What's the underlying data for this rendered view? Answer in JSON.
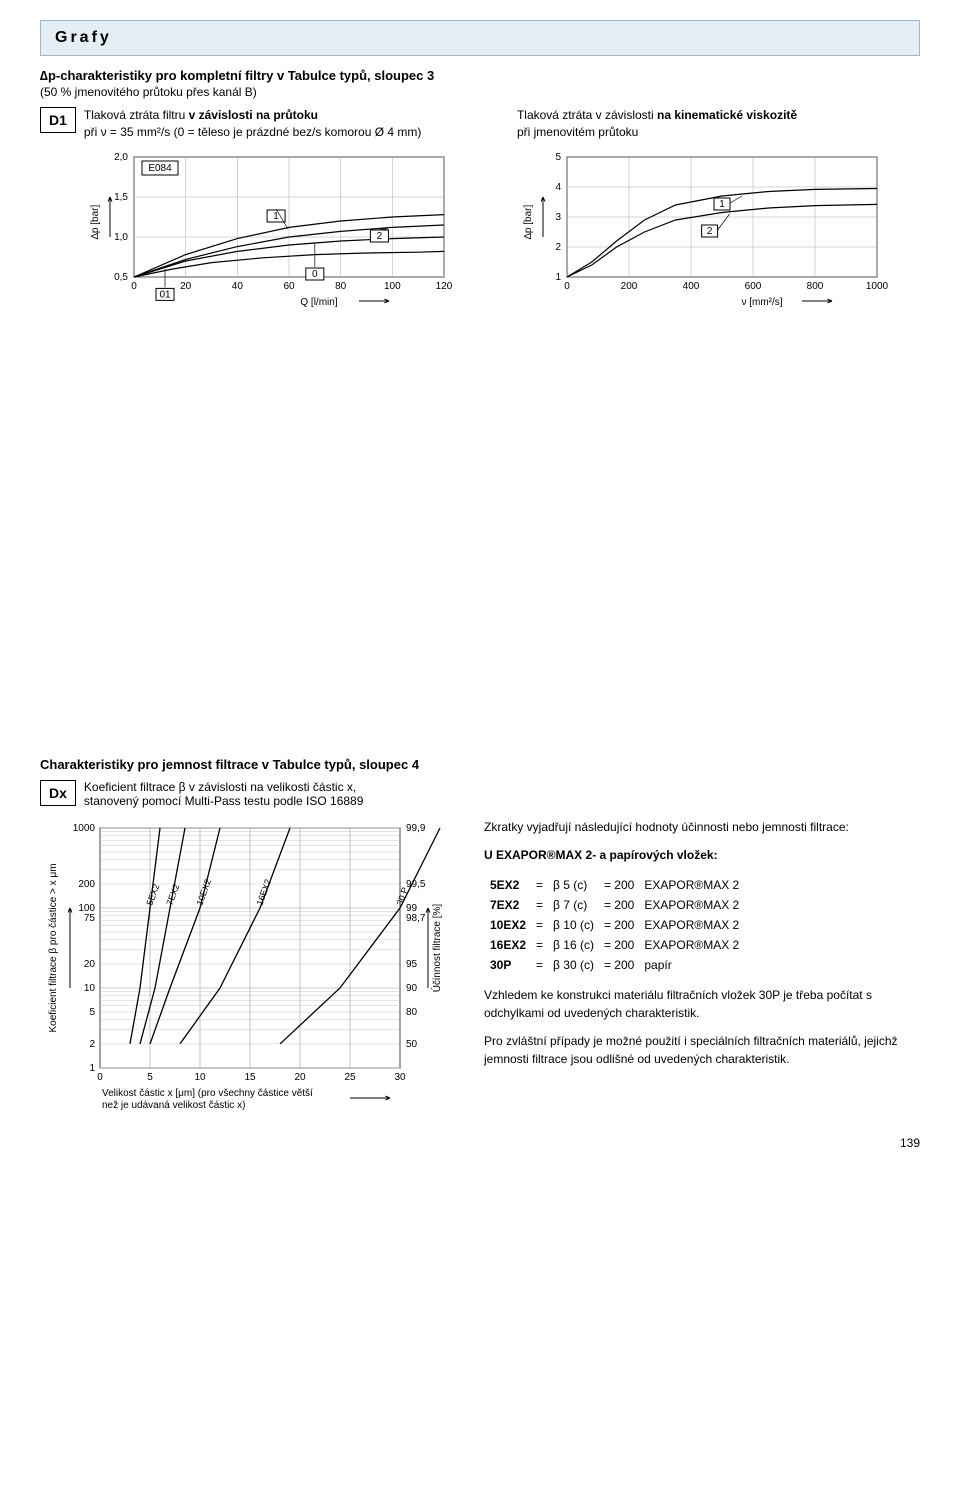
{
  "header": {
    "title": "Grafy"
  },
  "section1": {
    "title": "∆p-charakteristiky pro kompletní filtry v Tabulce typů, sloupec 3",
    "sub": "(50 % jmenovitého průtoku přes kanál B)",
    "box_label": "D1",
    "left": {
      "title_a": "Tlaková ztráta filtru ",
      "title_b": "v závislosti na průtoku",
      "sub": "při ν = 35 mm²/s (0 = těleso je prázdné bez/s komorou Ø 4 mm)"
    },
    "right": {
      "title_a": "Tlaková ztráta v závislosti ",
      "title_b": "na kinematické viskozitě",
      "sub": "při jmenovitém průtoku"
    }
  },
  "chart_left": {
    "ylabel": "∆p [bar]",
    "xlabel": "Q [l/min]",
    "yticks": [
      "0,5",
      "1,0",
      "1,5",
      "2,0"
    ],
    "xticks": [
      "0",
      "20",
      "40",
      "60",
      "80",
      "100",
      "120"
    ],
    "xmin": 0,
    "xmax": 120,
    "ymin": 0.5,
    "ymax": 2.0,
    "series_label_box": "E084",
    "curve_labels": {
      "01": "01",
      "0": "0",
      "1": "1",
      "2": "2"
    },
    "curves": {
      "01": [
        [
          0,
          0.5
        ],
        [
          15,
          0.6
        ],
        [
          30,
          0.68
        ],
        [
          50,
          0.74
        ],
        [
          70,
          0.78
        ],
        [
          90,
          0.8
        ],
        [
          110,
          0.81
        ],
        [
          120,
          0.82
        ]
      ],
      "0": [
        [
          0,
          0.5
        ],
        [
          20,
          0.7
        ],
        [
          40,
          0.82
        ],
        [
          60,
          0.9
        ],
        [
          80,
          0.95
        ],
        [
          100,
          0.98
        ],
        [
          120,
          1.0
        ]
      ],
      "1": [
        [
          0,
          0.5
        ],
        [
          20,
          0.78
        ],
        [
          40,
          0.98
        ],
        [
          60,
          1.12
        ],
        [
          80,
          1.2
        ],
        [
          100,
          1.25
        ],
        [
          120,
          1.28
        ]
      ],
      "2": [
        [
          0,
          0.5
        ],
        [
          20,
          0.72
        ],
        [
          40,
          0.88
        ],
        [
          60,
          1.0
        ],
        [
          80,
          1.07
        ],
        [
          100,
          1.12
        ],
        [
          120,
          1.15
        ]
      ]
    },
    "line_color": "#000",
    "grid_color": "#999",
    "bg": "#fff",
    "line_width": 1
  },
  "chart_right": {
    "ylabel": "∆p [bar]",
    "xlabel": "ν [mm²/s]",
    "yticks": [
      "1",
      "2",
      "3",
      "4",
      "5"
    ],
    "xticks": [
      "0",
      "200",
      "400",
      "600",
      "800",
      "1000"
    ],
    "xmin": 0,
    "xmax": 1000,
    "ymin": 1,
    "ymax": 5,
    "curve_labels": {
      "1": "1",
      "2": "2"
    },
    "curves": {
      "1": [
        [
          0,
          1.0
        ],
        [
          80,
          1.5
        ],
        [
          160,
          2.2
        ],
        [
          250,
          2.9
        ],
        [
          350,
          3.4
        ],
        [
          500,
          3.7
        ],
        [
          650,
          3.85
        ],
        [
          800,
          3.92
        ],
        [
          1000,
          3.95
        ]
      ],
      "2": [
        [
          0,
          1.0
        ],
        [
          80,
          1.4
        ],
        [
          160,
          2.0
        ],
        [
          250,
          2.5
        ],
        [
          350,
          2.9
        ],
        [
          500,
          3.15
        ],
        [
          650,
          3.3
        ],
        [
          800,
          3.38
        ],
        [
          1000,
          3.42
        ]
      ]
    },
    "line_color": "#000",
    "grid_color": "#999",
    "line_width": 1
  },
  "section2": {
    "title": "Charakteristiky pro jemnost filtrace v Tabulce typů, sloupec 4",
    "box_label": "Dx",
    "desc_a": "Koeficient filtrace β v závislosti na velikosti částic x,",
    "desc_b": "stanovený pomocí Multi-Pass testu podle ISO 16889"
  },
  "chart_dx": {
    "ylabel": "Koeficient filtrace β pro částice > x μm",
    "y2label": "Účinnost filtrace [%]",
    "xlabel_a": "Velikost částic x [μm] (pro všechny částice větší",
    "xlabel_b": "než je udávaná velikost částic x)",
    "yticks": [
      1,
      2,
      5,
      10,
      20,
      75,
      100,
      200,
      1000
    ],
    "y2ticks": [
      "50",
      "80",
      "90",
      "95",
      "98,7",
      "99",
      "99,5",
      "99,9"
    ],
    "xticks": [
      0,
      5,
      10,
      15,
      20,
      25,
      30
    ],
    "curves": {
      "5EX2": [
        [
          3,
          2
        ],
        [
          4,
          10
        ],
        [
          5,
          100
        ],
        [
          6,
          1000
        ]
      ],
      "7EX2": [
        [
          4,
          2
        ],
        [
          5.5,
          10
        ],
        [
          7,
          100
        ],
        [
          8.5,
          1000
        ]
      ],
      "10EX2": [
        [
          5,
          2
        ],
        [
          7,
          10
        ],
        [
          10,
          100
        ],
        [
          12,
          1000
        ]
      ],
      "16EX2": [
        [
          8,
          2
        ],
        [
          12,
          10
        ],
        [
          16,
          100
        ],
        [
          19,
          1000
        ]
      ],
      "30 P": [
        [
          18,
          2
        ],
        [
          24,
          10
        ],
        [
          30,
          100
        ],
        [
          34,
          1000
        ]
      ]
    },
    "line_color": "#000",
    "grid_color": "#888"
  },
  "legend": {
    "intro": "Zkratky vyjadřují následující hodnoty účinnosti nebo jemnosti filtrace:",
    "heading": "U EXAPOR®MAX 2- a papírových vložek:",
    "rows": [
      {
        "code": "5EX2",
        "beta": "β 5 (c)",
        "val": "= 200",
        "mat": "EXAPOR®MAX 2"
      },
      {
        "code": "7EX2",
        "beta": "β 7 (c)",
        "val": "= 200",
        "mat": "EXAPOR®MAX 2"
      },
      {
        "code": "10EX2",
        "beta": "β 10 (c)",
        "val": "= 200",
        "mat": "EXAPOR®MAX 2"
      },
      {
        "code": "16EX2",
        "beta": "β 16 (c)",
        "val": "= 200",
        "mat": "EXAPOR®MAX 2"
      },
      {
        "code": "30P",
        "beta": "β 30 (c)",
        "val": "= 200",
        "mat": "papír"
      }
    ],
    "note1": "Vzhledem ke konstrukci materiálu filtračních vložek 30P je třeba počítat s odchylkami od uvedených charakteristik.",
    "note2": "Pro zvláštní případy je možné použití i speciálních filtračních materiálů, jejichž jemnosti filtrace jsou odlišné od uvedených charakteristik."
  },
  "page_num": "139"
}
